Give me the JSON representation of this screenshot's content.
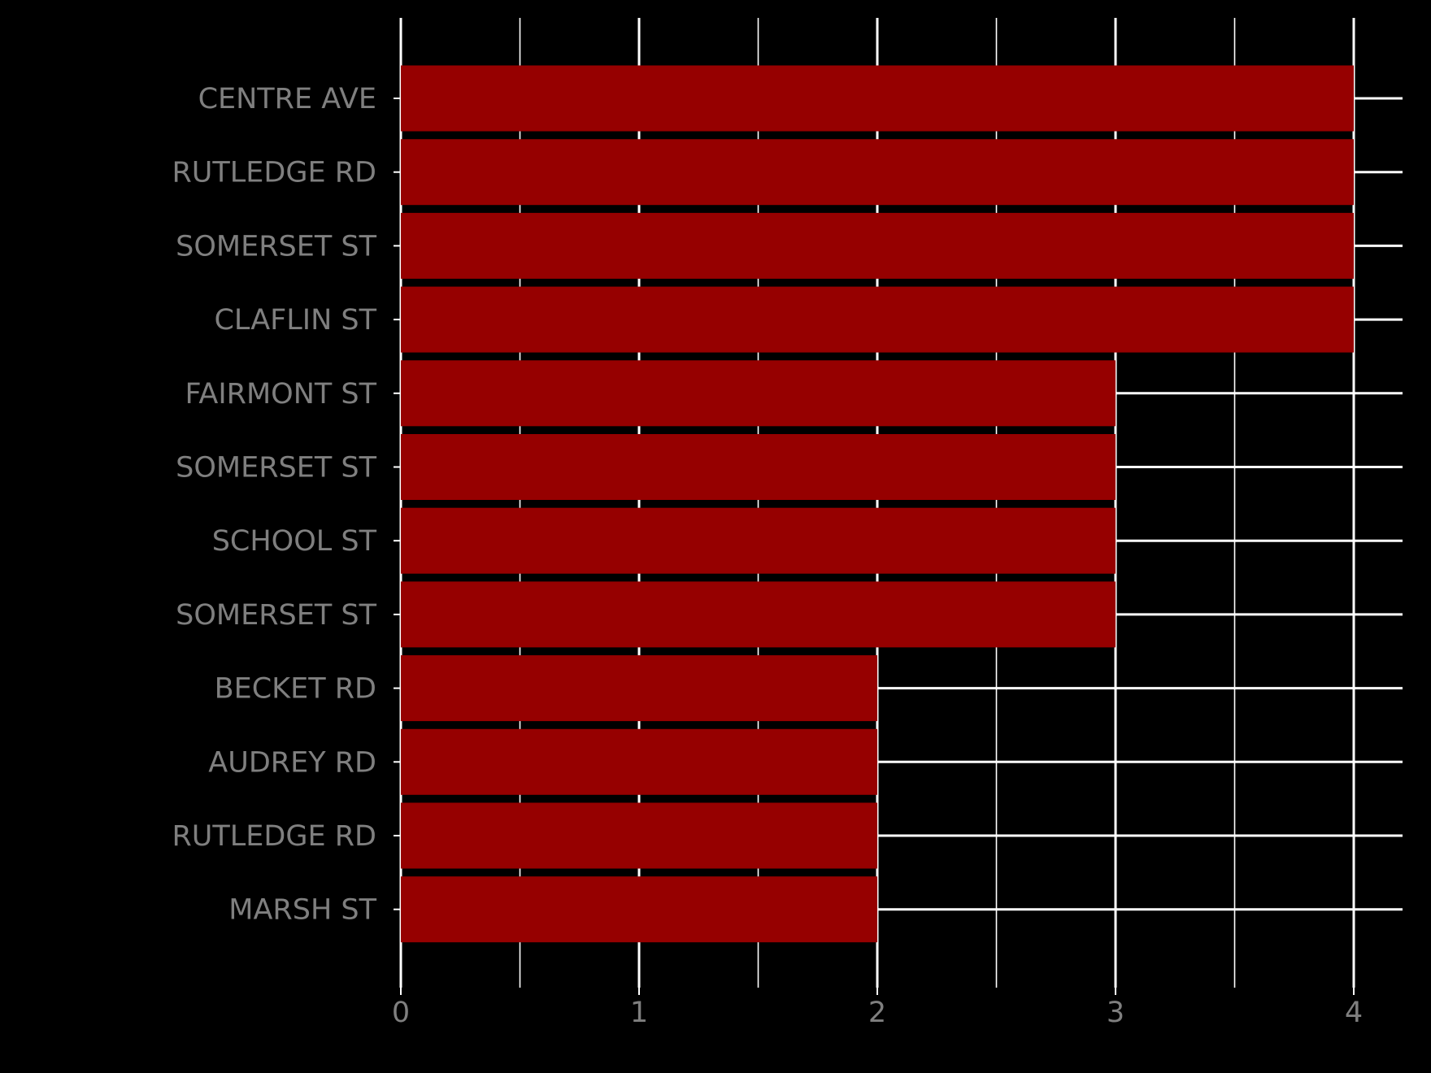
{
  "chart_data": {
    "type": "bar",
    "orientation": "horizontal",
    "categories": [
      "CENTRE AVE",
      "RUTLEDGE RD",
      "SOMERSET ST",
      "CLAFLIN ST",
      "FAIRMONT ST",
      "SOMERSET ST",
      "SCHOOL ST",
      "SOMERSET ST",
      "BECKET RD",
      "AUDREY RD",
      "RUTLEDGE RD",
      "MARSH ST"
    ],
    "values": [
      4,
      4,
      4,
      4,
      3,
      3,
      3,
      3,
      2,
      2,
      2,
      2
    ],
    "x_ticks": [
      "0",
      "1",
      "2",
      "3",
      "4"
    ],
    "xlim": [
      0,
      4.2
    ],
    "grid": true,
    "legend": "none",
    "title": "",
    "xlabel": "",
    "ylabel": ""
  },
  "colors": {
    "background": "#000000",
    "bar": "#960000",
    "grid": "#ffffff",
    "tick_text": "#7f7f7f"
  }
}
